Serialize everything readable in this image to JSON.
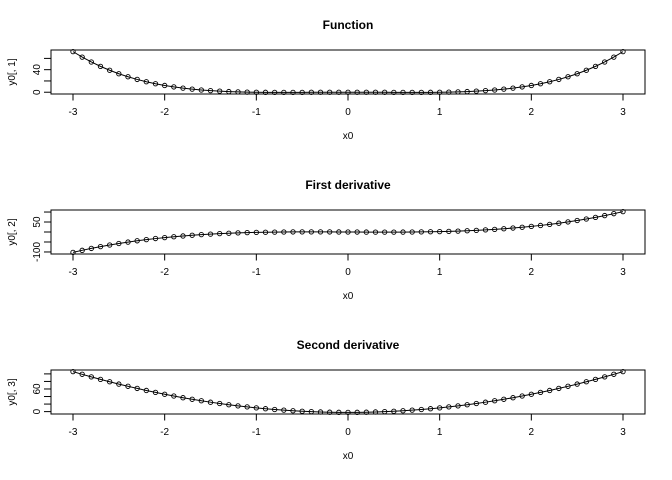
{
  "figure": {
    "background": "#ffffff",
    "foreground": "#000000",
    "marker": "open-circle",
    "panel_count": 3
  },
  "chart_data": [
    {
      "type": "line",
      "title": "Function",
      "xlabel": "x0",
      "ylabel": "y0[, 1]",
      "x": [
        -3,
        -2.9,
        -2.8,
        -2.7,
        -2.6,
        -2.5,
        -2.4,
        -2.3,
        -2.2,
        -2.1,
        -2,
        -1.9,
        -1.8,
        -1.7,
        -1.6,
        -1.5,
        -1.4,
        -1.3,
        -1.2,
        -1.1,
        -1,
        -0.9,
        -0.8,
        -0.7,
        -0.6,
        -0.5,
        -0.4,
        -0.3,
        -0.2,
        -0.1,
        0,
        0.1,
        0.2,
        0.3,
        0.4,
        0.5,
        0.6,
        0.7,
        0.8,
        0.9,
        1,
        1.1,
        1.2,
        1.3,
        1.4,
        1.5,
        1.6,
        1.7,
        1.8,
        1.9,
        2,
        2.1,
        2.2,
        2.3,
        2.4,
        2.5,
        2.6,
        2.7,
        2.8,
        2.9,
        3
      ],
      "values": [
        72,
        62.3181,
        53.6256,
        45.8541,
        38.9376,
        32.8125,
        27.4176,
        22.6941,
        18.5856,
        15.0381,
        12,
        9.4221,
        7.2576,
        5.4621,
        3.9936,
        2.8125,
        1.8816,
        1.1661,
        0.6336,
        0.2541,
        0,
        -0.1539,
        -0.2304,
        -0.2499,
        -0.2304,
        -0.1875,
        -0.1344,
        -0.0819,
        -0.0384,
        -0.0099,
        0,
        -0.0099,
        -0.0384,
        -0.0819,
        -0.1344,
        -0.1875,
        -0.2304,
        -0.2499,
        -0.2304,
        -0.1539,
        0,
        0.2541,
        0.6336,
        1.1661,
        1.8816,
        2.8125,
        3.9936,
        5.4621,
        7.2576,
        9.4221,
        12,
        15.0381,
        18.5856,
        22.6941,
        27.4176,
        32.8125,
        38.9376,
        45.8541,
        53.6256,
        62.3181,
        72
      ],
      "xlim": [
        -3.24,
        3.24
      ],
      "ylim": [
        -3.14,
        74.89
      ],
      "xticks": [
        -3,
        -2,
        -1,
        0,
        1,
        2,
        3
      ],
      "xtick_labels": [
        "-3",
        "-2",
        "-1",
        "0",
        "1",
        "2",
        "3"
      ],
      "yticks": [
        0,
        20,
        40,
        60
      ],
      "ytick_labels": [
        "0",
        "",
        "40",
        ""
      ],
      "grid": false,
      "legend": null
    },
    {
      "type": "line",
      "title": "First derivative",
      "xlabel": "x0",
      "ylabel": "y0[, 2]",
      "x": [
        -3,
        -2.9,
        -2.8,
        -2.7,
        -2.6,
        -2.5,
        -2.4,
        -2.3,
        -2.2,
        -2.1,
        -2,
        -1.9,
        -1.8,
        -1.7,
        -1.6,
        -1.5,
        -1.4,
        -1.3,
        -1.2,
        -1.1,
        -1,
        -0.9,
        -0.8,
        -0.7,
        -0.6,
        -0.5,
        -0.4,
        -0.3,
        -0.2,
        -0.1,
        0,
        0.1,
        0.2,
        0.3,
        0.4,
        0.5,
        0.6,
        0.7,
        0.8,
        0.9,
        1,
        1.1,
        1.2,
        1.3,
        1.4,
        1.5,
        1.6,
        1.7,
        1.8,
        1.9,
        2,
        2.1,
        2.2,
        2.3,
        2.4,
        2.5,
        2.6,
        2.7,
        2.8,
        2.9,
        3
      ],
      "values": [
        -102,
        -91.756,
        -82.208,
        -73.332,
        -65.104,
        -57.5,
        -50.496,
        -44.068,
        -38.192,
        -32.844,
        -28,
        -23.636,
        -19.728,
        -16.252,
        -13.184,
        -10.5,
        -8.176,
        -6.188,
        -4.512,
        -3.124,
        -2,
        -1.116,
        -0.448,
        0.028,
        0.336,
        0.5,
        0.544,
        0.492,
        0.368,
        0.196,
        0,
        -0.196,
        -0.368,
        -0.492,
        -0.544,
        -0.5,
        -0.336,
        -0.028,
        0.448,
        1.116,
        2,
        3.124,
        4.512,
        6.188,
        8.176,
        10.5,
        13.184,
        16.252,
        19.728,
        23.636,
        28,
        32.844,
        38.192,
        44.068,
        50.496,
        57.5,
        65.104,
        73.332,
        82.208,
        91.756,
        102
      ],
      "xlim": [
        -3.24,
        3.24
      ],
      "ylim": [
        -110.16,
        110.16
      ],
      "xticks": [
        -3,
        -2,
        -1,
        0,
        1,
        2,
        3
      ],
      "xtick_labels": [
        "-3",
        "-2",
        "-1",
        "0",
        "1",
        "2",
        "3"
      ],
      "yticks": [
        -100,
        -50,
        0,
        50,
        100
      ],
      "ytick_labels": [
        "-100",
        "",
        "",
        "50",
        ""
      ],
      "grid": false,
      "legend": null
    },
    {
      "type": "line",
      "title": "Second derivative",
      "xlabel": "x0",
      "ylabel": "y0[, 3]",
      "x": [
        -3,
        -2.9,
        -2.8,
        -2.7,
        -2.6,
        -2.5,
        -2.4,
        -2.3,
        -2.2,
        -2.1,
        -2,
        -1.9,
        -1.8,
        -1.7,
        -1.6,
        -1.5,
        -1.4,
        -1.3,
        -1.2,
        -1.1,
        -1,
        -0.9,
        -0.8,
        -0.7,
        -0.6,
        -0.5,
        -0.4,
        -0.3,
        -0.2,
        -0.1,
        0,
        0.1,
        0.2,
        0.3,
        0.4,
        0.5,
        0.6,
        0.7,
        0.8,
        0.9,
        1,
        1.1,
        1.2,
        1.3,
        1.4,
        1.5,
        1.6,
        1.7,
        1.8,
        1.9,
        2,
        2.1,
        2.2,
        2.3,
        2.4,
        2.5,
        2.6,
        2.7,
        2.8,
        2.9,
        3
      ],
      "values": [
        106,
        98.92,
        92.08,
        85.48,
        79.12,
        73,
        67.12,
        61.48,
        56.08,
        50.92,
        46,
        41.32,
        36.88,
        32.68,
        28.72,
        25,
        21.52,
        18.28,
        15.28,
        12.52,
        10,
        7.72,
        5.68,
        3.88,
        2.32,
        1,
        -0.08,
        -0.92,
        -1.52,
        -1.88,
        -2,
        -1.88,
        -1.52,
        -0.92,
        -0.08,
        1,
        2.32,
        3.88,
        5.68,
        7.72,
        10,
        12.52,
        15.28,
        18.28,
        21.52,
        25,
        28.72,
        32.68,
        36.88,
        41.32,
        46,
        50.92,
        56.08,
        61.48,
        67.12,
        73,
        79.12,
        85.48,
        92.08,
        98.92,
        106
      ],
      "xlim": [
        -3.24,
        3.24
      ],
      "ylim": [
        -6.32,
        110.32
      ],
      "xticks": [
        -3,
        -2,
        -1,
        0,
        1,
        2,
        3
      ],
      "xtick_labels": [
        "-3",
        "-2",
        "-1",
        "0",
        "1",
        "2",
        "3"
      ],
      "yticks": [
        0,
        20,
        40,
        60,
        80,
        100
      ],
      "ytick_labels": [
        "0",
        "",
        "",
        "60",
        "",
        ""
      ],
      "grid": false,
      "legend": null
    }
  ]
}
